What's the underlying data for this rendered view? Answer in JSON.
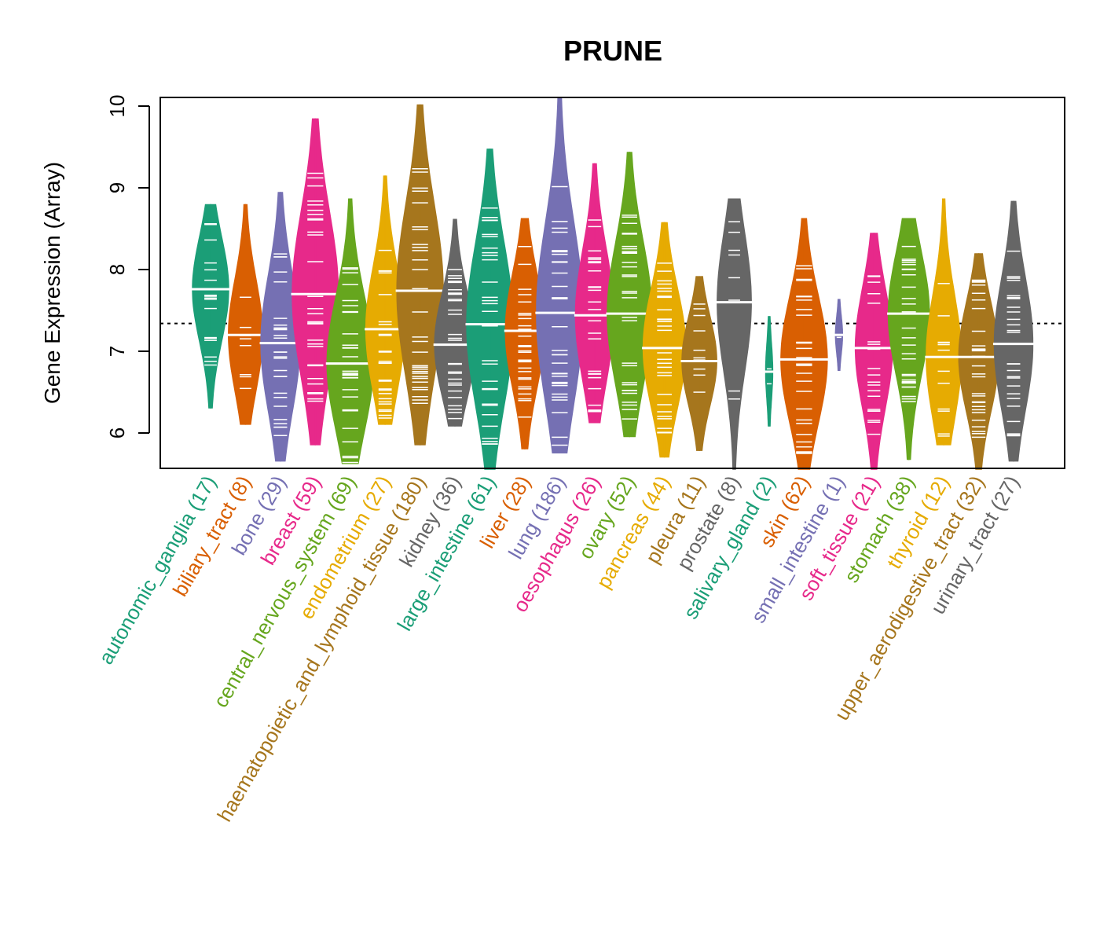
{
  "chart_data": {
    "type": "violin",
    "title": "PRUNE",
    "xlabel": "",
    "ylabel": "Gene Expression (Array)",
    "ylim": [
      5.55,
      10.1
    ],
    "yticks": [
      6,
      7,
      8,
      9,
      10
    ],
    "reference_line": 7.34,
    "grid": false,
    "legend": "none",
    "categories": [
      {
        "name": "autonomic_ganglia",
        "n": 17,
        "label": "autonomic_ganglia (17)",
        "color": "#1B9E77",
        "median": 7.76,
        "min": 6.3,
        "max": 8.8
      },
      {
        "name": "biliary_tract",
        "n": 8,
        "label": "biliary_tract (8)",
        "color": "#D95F02",
        "median": 7.2,
        "min": 6.1,
        "max": 8.8
      },
      {
        "name": "bone",
        "n": 29,
        "label": "bone (29)",
        "color": "#7570B3",
        "median": 7.1,
        "min": 5.65,
        "max": 8.95
      },
      {
        "name": "breast",
        "n": 59,
        "label": "breast (59)",
        "color": "#E7298A",
        "median": 7.7,
        "min": 5.85,
        "max": 9.85
      },
      {
        "name": "central_nervous_system",
        "n": 69,
        "label": "central_nervous_system (69)",
        "color": "#66A61E",
        "median": 6.85,
        "min": 5.62,
        "max": 8.87
      },
      {
        "name": "endometrium",
        "n": 27,
        "label": "endometrium (27)",
        "color": "#E6AB02",
        "median": 7.27,
        "min": 6.1,
        "max": 9.15
      },
      {
        "name": "haematopoietic_and_lymphoid_tissue",
        "n": 180,
        "label": "haematopoietic_and_lymphoid_tissue (180)",
        "color": "#A6761D",
        "median": 7.74,
        "min": 5.85,
        "max": 10.02
      },
      {
        "name": "kidney",
        "n": 36,
        "label": "kidney (36)",
        "color": "#666666",
        "median": 7.08,
        "min": 6.08,
        "max": 8.62
      },
      {
        "name": "large_intestine",
        "n": 61,
        "label": "large_intestine (61)",
        "color": "#1B9E77",
        "median": 7.33,
        "min": 5.55,
        "max": 9.48
      },
      {
        "name": "liver",
        "n": 28,
        "label": "liver (28)",
        "color": "#D95F02",
        "median": 7.25,
        "min": 5.8,
        "max": 8.63
      },
      {
        "name": "lung",
        "n": 186,
        "label": "lung (186)",
        "color": "#7570B3",
        "median": 7.47,
        "min": 5.75,
        "max": 10.1
      },
      {
        "name": "oesophagus",
        "n": 26,
        "label": "oesophagus (26)",
        "color": "#E7298A",
        "median": 7.44,
        "min": 6.12,
        "max": 9.3
      },
      {
        "name": "ovary",
        "n": 52,
        "label": "ovary (52)",
        "color": "#66A61E",
        "median": 7.46,
        "min": 5.95,
        "max": 9.44
      },
      {
        "name": "pancreas",
        "n": 44,
        "label": "pancreas (44)",
        "color": "#E6AB02",
        "median": 7.04,
        "min": 5.7,
        "max": 8.58
      },
      {
        "name": "pleura",
        "n": 11,
        "label": "pleura (11)",
        "color": "#A6761D",
        "median": 6.88,
        "min": 5.78,
        "max": 7.92
      },
      {
        "name": "prostate",
        "n": 8,
        "label": "prostate (8)",
        "color": "#666666",
        "median": 7.6,
        "min": 5.55,
        "max": 8.87
      },
      {
        "name": "salivary_gland",
        "n": 2,
        "label": "salivary_gland (2)",
        "color": "#1B9E77",
        "median": 6.75,
        "min": 6.08,
        "max": 7.43
      },
      {
        "name": "skin",
        "n": 62,
        "label": "skin (62)",
        "color": "#D95F02",
        "median": 6.9,
        "min": 5.55,
        "max": 8.63
      },
      {
        "name": "small_intestine",
        "n": 1,
        "label": "small_intestine (1)",
        "color": "#7570B3",
        "median": 7.2,
        "min": 6.76,
        "max": 7.64
      },
      {
        "name": "soft_tissue",
        "n": 21,
        "label": "soft_tissue (21)",
        "color": "#E7298A",
        "median": 7.04,
        "min": 5.55,
        "max": 8.45
      },
      {
        "name": "stomach",
        "n": 38,
        "label": "stomach (38)",
        "color": "#66A61E",
        "median": 7.46,
        "min": 5.67,
        "max": 8.63
      },
      {
        "name": "thyroid",
        "n": 12,
        "label": "thyroid (12)",
        "color": "#E6AB02",
        "median": 6.93,
        "min": 5.85,
        "max": 8.87
      },
      {
        "name": "upper_aerodigestive_tract",
        "n": 32,
        "label": "upper_aerodigestive_tract (32)",
        "color": "#A6761D",
        "median": 6.93,
        "min": 5.55,
        "max": 8.2
      },
      {
        "name": "urinary_tract",
        "n": 27,
        "label": "urinary_tract (27)",
        "color": "#666666",
        "median": 7.09,
        "min": 5.65,
        "max": 8.84
      }
    ]
  }
}
